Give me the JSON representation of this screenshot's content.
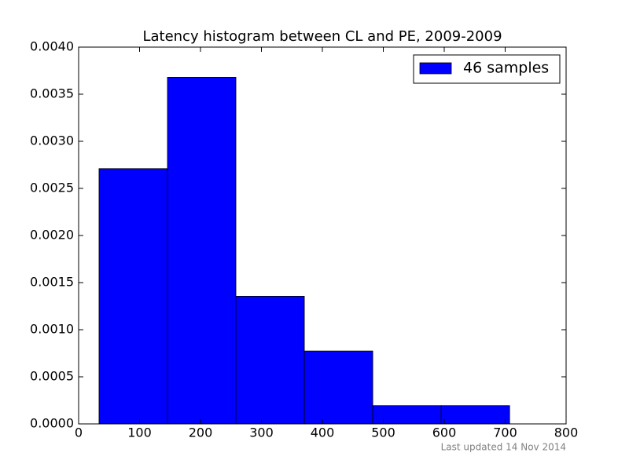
{
  "chart_data": {
    "type": "histogram",
    "title": "Latency histogram between CL and PE, 2009-2009",
    "bins": [
      33.5,
      145.8,
      258.1,
      370.4,
      482.7,
      595.0,
      707.3
    ],
    "series": [
      {
        "name": "46 samples",
        "color": "#0000ff",
        "values": [
          0.00271,
          0.00368,
          0.001355,
          0.000774,
          0.000194,
          0.000194
        ]
      }
    ],
    "xlim": [
      0,
      800
    ],
    "xticks": [
      0,
      100,
      200,
      300,
      400,
      500,
      600,
      700,
      800
    ],
    "ylim": [
      0,
      0.004
    ],
    "yticks": [
      {
        "value": 0,
        "label": "0.0000"
      },
      {
        "value": 0.0005,
        "label": "0.0005"
      },
      {
        "value": 0.001,
        "label": "0.0010"
      },
      {
        "value": 0.0015,
        "label": "0.0015"
      },
      {
        "value": 0.002,
        "label": "0.0020"
      },
      {
        "value": 0.0025,
        "label": "0.0025"
      },
      {
        "value": 0.003,
        "label": "0.0030"
      },
      {
        "value": 0.0035,
        "label": "0.0035"
      },
      {
        "value": 0.004,
        "label": "0.0040"
      }
    ],
    "grid": false,
    "legend": "upper right",
    "footnote": "Last updated 14 Nov 2014"
  }
}
